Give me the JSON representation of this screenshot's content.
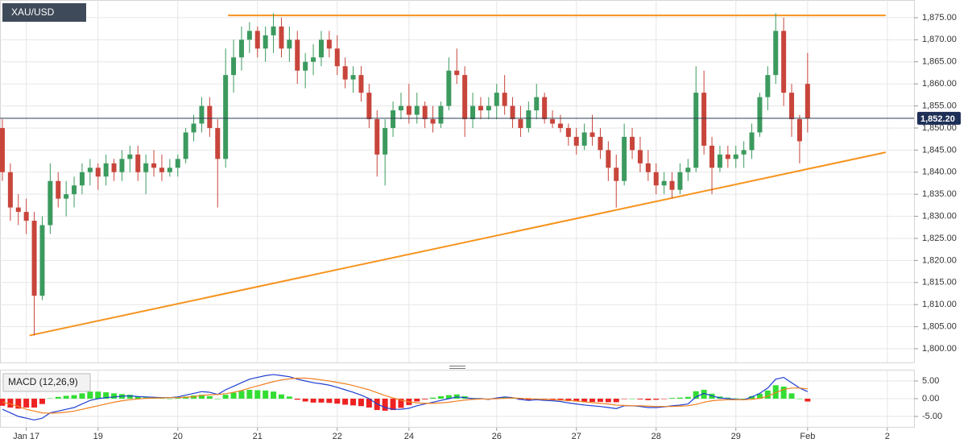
{
  "chart_data": [
    {
      "type": "candlestick",
      "title": "XAU/USD",
      "categories": [
        null,
        null,
        null,
        "Jan 17",
        null,
        null,
        null,
        null,
        null,
        null,
        null,
        null,
        "19",
        null,
        null,
        null,
        null,
        null,
        null,
        null,
        null,
        null,
        "20",
        null,
        null,
        null,
        null,
        null,
        null,
        null,
        null,
        null,
        "21",
        null,
        null,
        null,
        null,
        null,
        null,
        null,
        null,
        null,
        "22",
        null,
        null,
        null,
        null,
        null,
        null,
        null,
        null,
        "24",
        null,
        null,
        null,
        null,
        null,
        null,
        null,
        null,
        null,
        null,
        "26",
        null,
        null,
        null,
        null,
        null,
        null,
        null,
        null,
        null,
        "27",
        null,
        null,
        null,
        null,
        null,
        null,
        null,
        null,
        null,
        "28",
        null,
        null,
        null,
        null,
        null,
        null,
        null,
        null,
        null,
        "29",
        null,
        null,
        null,
        null,
        null,
        null,
        null,
        null,
        "Feb",
        null,
        null,
        null,
        null,
        null,
        null,
        null,
        null,
        null,
        "2"
      ],
      "open": [
        1850,
        1840,
        1832,
        1831,
        1829,
        1812,
        1828,
        1838,
        1834,
        1835,
        1837,
        1840,
        1841,
        1839,
        1842,
        1840,
        1843,
        1844,
        1840,
        1842,
        1841,
        1840,
        1841,
        1843,
        1849,
        1851,
        1855,
        1850,
        1843,
        1862,
        1866,
        1870,
        1872,
        1868,
        1871,
        1873,
        1868,
        1870,
        1863,
        1865,
        1866,
        1870,
        1868,
        1864,
        1861,
        1862,
        1858,
        1852,
        1844,
        1850,
        1854,
        1855,
        1853,
        1855,
        1852,
        1851,
        1855,
        1863,
        1862,
        1852,
        1855,
        1854,
        1855,
        1858,
        1855,
        1852,
        1850,
        1854,
        1857,
        1852,
        1851,
        1850,
        1848,
        1846,
        1849,
        1848,
        1845,
        1841,
        1838,
        1848,
        1845,
        1842,
        1840,
        1837,
        1838,
        1836,
        1840,
        1841,
        1858,
        1846,
        1841,
        1844,
        1843,
        1844,
        1845,
        1849,
        1857,
        1862,
        1872,
        1858,
        1852,
        1860,
        null,
        null,
        null,
        null,
        null,
        null,
        null,
        null,
        null,
        null
      ],
      "high": [
        1852,
        1842,
        1835,
        1834,
        1831,
        1830,
        1842,
        1840,
        1838,
        1839,
        1842,
        1843,
        1842,
        1844,
        1843,
        1845,
        1846,
        1846,
        1844,
        1845,
        1844,
        1843,
        1844,
        1850,
        1853,
        1857,
        1857,
        1852,
        1868,
        1870,
        1873,
        1874,
        1873,
        1873,
        1876,
        1875,
        1873,
        1872,
        1867,
        1869,
        1872,
        1872,
        1871,
        1866,
        1864,
        1864,
        1860,
        1854,
        1852,
        1856,
        1858,
        1860,
        1858,
        1856,
        1855,
        1856,
        1866,
        1868,
        1864,
        1858,
        1857,
        1857,
        1860,
        1862,
        1857,
        1855,
        1856,
        1860,
        1858,
        1854,
        1853,
        1851,
        1850,
        1851,
        1853,
        1850,
        1847,
        1844,
        1851,
        1850,
        1848,
        1845,
        1842,
        1840,
        1840,
        1842,
        1843,
        1864,
        1863,
        1848,
        1846,
        1846,
        1846,
        1847,
        1851,
        1858,
        1864,
        1876,
        1875,
        1860,
        1853,
        1867,
        null,
        null,
        null,
        null,
        null,
        null,
        null,
        null,
        null,
        null
      ],
      "low": [
        1838,
        1829,
        1828,
        1826,
        1803,
        1811,
        1826,
        1832,
        1830,
        1832,
        1835,
        1837,
        1836,
        1837,
        1838,
        1838,
        1840,
        1838,
        1835,
        1839,
        1838,
        1839,
        1839,
        1842,
        1847,
        1849,
        1848,
        1832,
        1841,
        1858,
        1863,
        1867,
        1866,
        1865,
        1867,
        1866,
        1865,
        1860,
        1859,
        1862,
        1864,
        1866,
        1862,
        1859,
        1858,
        1856,
        1850,
        1839,
        1837,
        1848,
        1852,
        1851,
        1851,
        1850,
        1849,
        1850,
        1854,
        1860,
        1848,
        1850,
        1852,
        1852,
        1852,
        1853,
        1850,
        1848,
        1849,
        1852,
        1851,
        1850,
        1849,
        1846,
        1844,
        1845,
        1846,
        1843,
        1838,
        1832,
        1837,
        1843,
        1840,
        1838,
        1835,
        1835,
        1834,
        1835,
        1838,
        1840,
        1844,
        1835,
        1840,
        1841,
        1841,
        1841,
        1843,
        1848,
        1854,
        1860,
        1855,
        1848,
        1842,
        1849,
        null,
        null,
        null,
        null,
        null,
        null,
        null,
        null,
        null,
        null
      ],
      "close": [
        1840,
        1832,
        1831,
        1829,
        1812,
        1828,
        1838,
        1834,
        1835,
        1837,
        1840,
        1841,
        1839,
        1842,
        1840,
        1843,
        1844,
        1840,
        1842,
        1841,
        1840,
        1841,
        1843,
        1849,
        1851,
        1855,
        1850,
        1843,
        1862,
        1866,
        1870,
        1872,
        1868,
        1871,
        1873,
        1868,
        1870,
        1863,
        1865,
        1866,
        1870,
        1868,
        1864,
        1861,
        1862,
        1858,
        1852,
        1844,
        1850,
        1854,
        1855,
        1853,
        1855,
        1852,
        1851,
        1855,
        1863,
        1862,
        1852,
        1855,
        1854,
        1855,
        1858,
        1855,
        1852,
        1850,
        1854,
        1857,
        1852,
        1851,
        1850,
        1848,
        1846,
        1849,
        1848,
        1845,
        1841,
        1838,
        1848,
        1845,
        1842,
        1840,
        1837,
        1838,
        1836,
        1840,
        1841,
        1858,
        1846,
        1841,
        1844,
        1843,
        1844,
        1845,
        1849,
        1857,
        1862,
        1872,
        1858,
        1852,
        1847,
        1852.2,
        null,
        null,
        null,
        null,
        null,
        null,
        null,
        null,
        null,
        null
      ],
      "up_color": "#3c9a5f",
      "down_color": "#c8453b",
      "ylim": [
        1796.9,
        1879.0
      ],
      "yticks": [
        {
          "value": 1800,
          "label": "1,800.00"
        },
        {
          "value": 1805,
          "label": "1,805.00"
        },
        {
          "value": 1810,
          "label": "1,810.00"
        },
        {
          "value": 1815,
          "label": "1,815.00"
        },
        {
          "value": 1820,
          "label": "1,820.00"
        },
        {
          "value": 1825,
          "label": "1,825.00"
        },
        {
          "value": 1830,
          "label": "1,830.00"
        },
        {
          "value": 1835,
          "label": "1,835.00"
        },
        {
          "value": 1840,
          "label": "1,840.00"
        },
        {
          "value": 1845,
          "label": "1,845.00"
        },
        {
          "value": 1850,
          "label": "1,850.00"
        },
        {
          "value": 1855,
          "label": "1,855.00"
        },
        {
          "value": 1860,
          "label": "1,860.00"
        },
        {
          "value": 1865,
          "label": "1,865.00"
        },
        {
          "value": 1870,
          "label": "1,870.00"
        },
        {
          "value": 1875,
          "label": "1,875.00"
        }
      ],
      "current_price": {
        "value": 1852.2,
        "label": "1,852.20"
      },
      "trendlines": [
        {
          "x": [
            28.3,
            110.8
          ],
          "y": [
            1875.5,
            1875.5
          ],
          "color": "#f7931e"
        },
        {
          "x": [
            3.4,
            110.8
          ],
          "y": [
            1803,
            1844.5
          ],
          "color": "#f7931e"
        }
      ],
      "grid": true
    },
    {
      "type": "macd",
      "title": "MACD (12,26,9)",
      "ylim": [
        -7.95,
        7.95
      ],
      "yticks": [
        {
          "value": 5,
          "label": "5.00"
        },
        {
          "value": 0,
          "label": "0.00"
        },
        {
          "value": -5,
          "label": "-5.00"
        }
      ],
      "series": [
        {
          "kind": "line",
          "color": "#1f3fd1",
          "values": [
            -3,
            -4,
            -5,
            -5.5,
            -6,
            -5.5,
            -4,
            -3.5,
            -3,
            -2.5,
            -1.5,
            -0.5,
            0,
            0.3,
            0.5,
            0.7,
            0.8,
            0.6,
            0.5,
            0.4,
            0.3,
            0.3,
            0.5,
            1,
            1.5,
            2,
            1.8,
            1.2,
            2.5,
            3.5,
            4.5,
            5.5,
            6,
            6.5,
            6.8,
            6.5,
            6.2,
            5.5,
            5,
            4.5,
            4.2,
            3.8,
            3.2,
            2.5,
            1.8,
            1,
            0,
            -1.5,
            -2.5,
            -3,
            -3,
            -2.7,
            -2,
            -1.5,
            -1,
            -0.5,
            0,
            0.5,
            0.3,
            0,
            0,
            -0.2,
            0.2,
            0.5,
            0.3,
            -0.2,
            -0.5,
            -0.3,
            -0.5,
            -0.6,
            -0.8,
            -1.2,
            -1.5,
            -1.8,
            -2,
            -2.2,
            -2.5,
            -2.8,
            -2,
            -2,
            -2.2,
            -2.5,
            -2.5,
            -2.3,
            -2,
            -1.8,
            -1.5,
            0.5,
            1.5,
            0.8,
            0.2,
            0,
            -0.2,
            -0.3,
            0.5,
            1.5,
            3,
            5.5,
            6,
            4.5,
            3,
            2,
            null,
            null,
            null,
            null,
            null,
            null,
            null,
            null,
            null,
            null
          ]
        },
        {
          "kind": "line",
          "color": "#f08020",
          "values": [
            -1,
            -1.5,
            -2.2,
            -3,
            -3.5,
            -4,
            -4.1,
            -4,
            -3.8,
            -3.5,
            -3,
            -2.5,
            -2,
            -1.5,
            -1,
            -0.6,
            -0.3,
            -0.1,
            0.1,
            0.2,
            0.2,
            0.3,
            0.3,
            0.4,
            0.6,
            0.9,
            1.1,
            1.2,
            1.4,
            1.8,
            2.3,
            3,
            3.6,
            4.2,
            4.8,
            5.3,
            5.6,
            5.8,
            5.8,
            5.6,
            5.3,
            5,
            4.6,
            4.2,
            3.7,
            3.1,
            2.5,
            1.7,
            0.9,
            0.2,
            -0.4,
            -0.9,
            -1.2,
            -1.3,
            -1.3,
            -1.2,
            -1,
            -0.7,
            -0.4,
            -0.2,
            -0.1,
            -0.1,
            0,
            0.1,
            0.2,
            0.1,
            0,
            -0.1,
            -0.2,
            -0.3,
            -0.4,
            -0.5,
            -0.7,
            -0.9,
            -1.1,
            -1.3,
            -1.5,
            -1.8,
            -1.9,
            -2,
            -2,
            -2.1,
            -2.2,
            -2.2,
            -2.2,
            -2.1,
            -2,
            -1.6,
            -1,
            -0.6,
            -0.4,
            -0.3,
            -0.3,
            -0.3,
            -0.2,
            0.1,
            0.7,
            1.7,
            2.6,
            3,
            3,
            2.8,
            null,
            null,
            null,
            null,
            null,
            null,
            null,
            null,
            null,
            null
          ]
        },
        {
          "kind": "histogram",
          "up_color": "#33dd33",
          "down_color": "#ee2222",
          "values": [
            -2,
            -2.5,
            -2.8,
            -2.5,
            -2.5,
            -1.5,
            0.1,
            0.5,
            0.8,
            1,
            1.5,
            2,
            2,
            1.8,
            1.5,
            1.3,
            1.1,
            0.7,
            0.4,
            0.2,
            0.1,
            0,
            0.2,
            0.6,
            0.9,
            1.1,
            0.7,
            0,
            1.1,
            1.7,
            2.2,
            2.5,
            2.4,
            2.3,
            2,
            1.2,
            0.6,
            -0.3,
            -0.8,
            -1.1,
            -1.1,
            -1.2,
            -1.4,
            -1.7,
            -1.9,
            -2.1,
            -2.5,
            -3.2,
            -3.4,
            -3.2,
            -2.6,
            -1.8,
            -0.8,
            -0.2,
            0.3,
            0.7,
            1,
            1.2,
            0.7,
            0.2,
            0.1,
            -0.1,
            0.2,
            0.4,
            0.1,
            -0.3,
            -0.5,
            -0.2,
            -0.3,
            -0.3,
            -0.4,
            -0.7,
            -0.8,
            -0.9,
            -0.9,
            -0.9,
            -1,
            -1,
            -0.1,
            0,
            -0.2,
            -0.4,
            -0.3,
            -0.1,
            0.2,
            0.3,
            0.5,
            2.1,
            2.5,
            1.4,
            0.6,
            0.3,
            0.1,
            0,
            0.7,
            1.4,
            2.3,
            3.8,
            3.4,
            1.5,
            0,
            -0.8,
            null,
            null,
            null,
            null,
            null,
            null,
            null,
            null,
            null,
            null
          ]
        }
      ],
      "grid": true
    }
  ]
}
